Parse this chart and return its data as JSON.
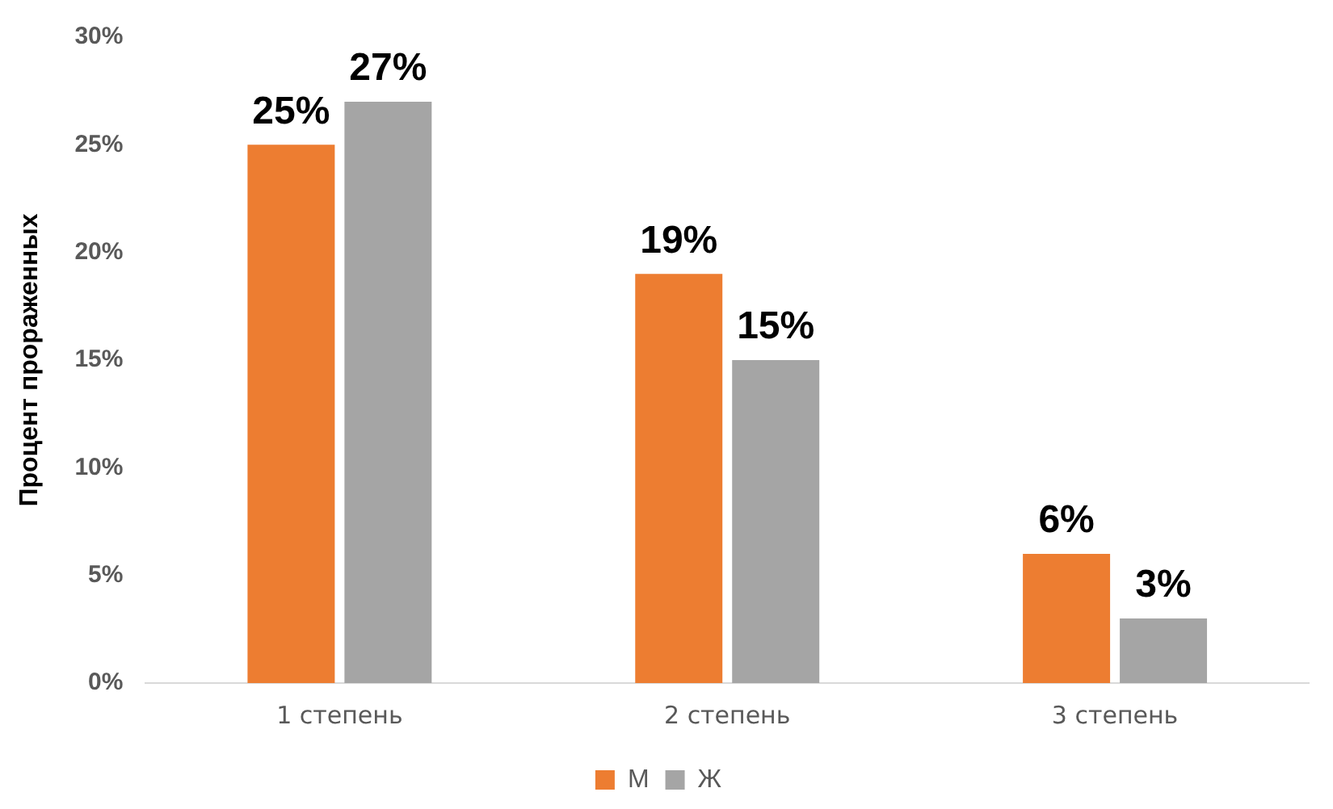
{
  "chart_data": {
    "type": "bar",
    "ylabel": "Процент прораженных",
    "categories": [
      "1 степень",
      "2 степень",
      "3 степень"
    ],
    "series": [
      {
        "name": "М",
        "color": "#ed7d31",
        "values": [
          25,
          19,
          6
        ]
      },
      {
        "name": "Ж",
        "color": "#a5a5a5",
        "values": [
          27,
          15,
          3
        ]
      }
    ],
    "ylim": [
      0,
      30
    ],
    "yticks": [
      {
        "value": 0,
        "label": "0%"
      },
      {
        "value": 5,
        "label": "5%"
      },
      {
        "value": 10,
        "label": "10%"
      },
      {
        "value": 15,
        "label": "15%"
      },
      {
        "value": 20,
        "label": "20%"
      },
      {
        "value": 25,
        "label": "25%"
      },
      {
        "value": 30,
        "label": "30%"
      }
    ],
    "value_labels": [
      [
        "25%",
        "19%",
        "6%"
      ],
      [
        "27%",
        "15%",
        "3%"
      ]
    ],
    "grid": false,
    "legend": "bottom"
  }
}
